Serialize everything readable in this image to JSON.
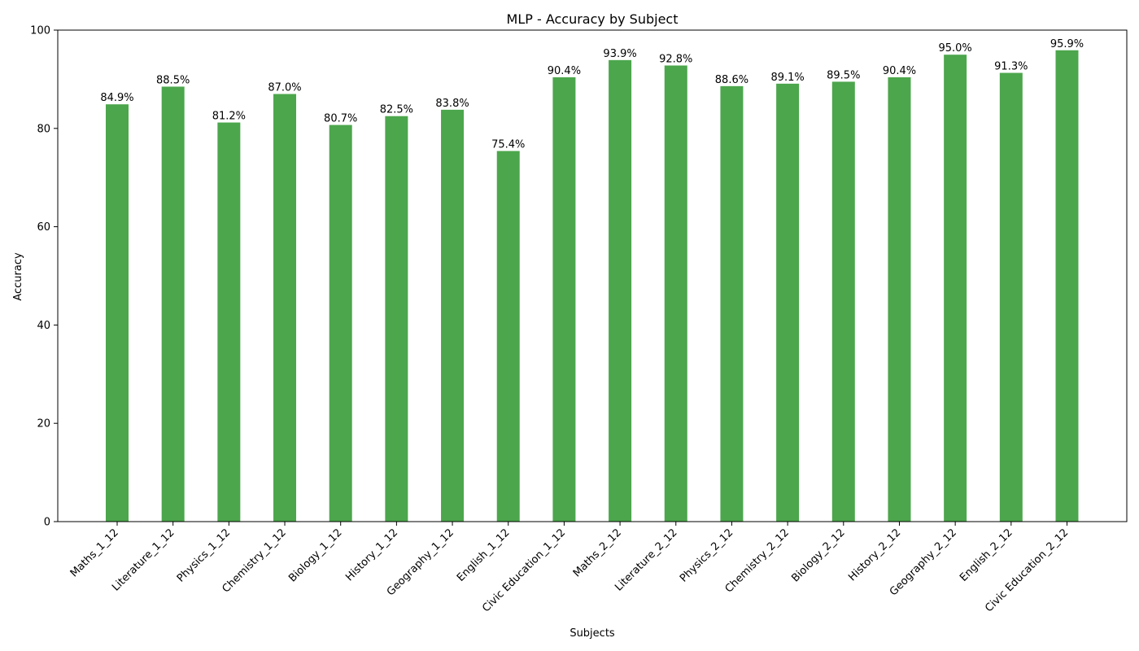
{
  "chart_data": {
    "type": "bar",
    "title": "MLP - Accuracy by Subject",
    "xlabel": "Subjects",
    "ylabel": "Accuracy",
    "ylim": [
      0,
      100
    ],
    "yticks": [
      0,
      20,
      40,
      60,
      80,
      100
    ],
    "grid": false,
    "bar_color": "#4ca64c",
    "categories": [
      "Maths_1_12",
      "Literature_1_12",
      "Physics_1_12",
      "Chemistry_1_12",
      "Biology_1_12",
      "History_1_12",
      "Geography_1_12",
      "English_1_12",
      "Civic Education_1_12",
      "Maths_2_12",
      "Literature_2_12",
      "Physics_2_12",
      "Chemistry_2_12",
      "Biology_2_12",
      "History_2_12",
      "Geography_2_12",
      "English_2_12",
      "Civic Education_2_12"
    ],
    "values": [
      84.9,
      88.5,
      81.2,
      87.0,
      80.7,
      82.5,
      83.8,
      75.4,
      90.4,
      93.9,
      92.8,
      88.6,
      89.1,
      89.5,
      90.4,
      95.0,
      91.3,
      95.9
    ],
    "data_labels": [
      "84.9%",
      "88.5%",
      "81.2%",
      "87.0%",
      "80.7%",
      "82.5%",
      "83.8%",
      "75.4%",
      "90.4%",
      "93.9%",
      "92.8%",
      "88.6%",
      "89.1%",
      "89.5%",
      "90.4%",
      "95.0%",
      "91.3%",
      "95.9%"
    ]
  }
}
